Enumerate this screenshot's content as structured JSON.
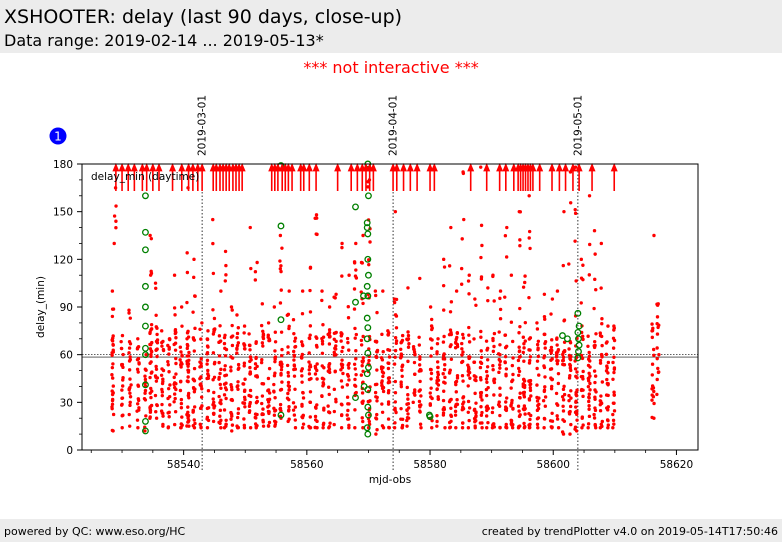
{
  "header": {
    "title": "XSHOOTER: delay (last 90 days, close-up)",
    "subtitle": "Data range: 2019-02-14 ... 2019-05-13*"
  },
  "notice": "*** not interactive ***",
  "badge": "1",
  "footer": {
    "left": "powered by QC: www.eso.org/HC",
    "right": "created by trendPlotter v4.0 on 2019-05-14T17:50:46"
  },
  "colors": {
    "series": "#ff0000",
    "highlight": "#008000",
    "badge": "#0000ff",
    "notice": "#ff0000"
  },
  "chart_data": {
    "type": "scatter",
    "xlabel": "mjd-obs",
    "ylabel": "delay_(min)",
    "legend": "delay_min (daytime)",
    "legend_position": "top-left",
    "xlim": [
      58523.5,
      58623.5
    ],
    "ylim": [
      0,
      180
    ],
    "xticks": [
      58540,
      58560,
      58580,
      58600,
      58620
    ],
    "yticks": [
      0,
      30,
      60,
      90,
      120,
      150,
      180
    ],
    "reference_lines": [
      58.5,
      60
    ],
    "date_markers": [
      {
        "x": 58543.0,
        "label": "2019-03-01"
      },
      {
        "x": 58574.0,
        "label": "2019-04-01"
      },
      {
        "x": 58604.0,
        "label": "2019-05-01"
      }
    ],
    "series": [
      {
        "color": "#ff0000",
        "marker": "dot",
        "columns": [
          {
            "x": 58528.5,
            "range": [
              12,
              100
            ],
            "n": 30
          },
          {
            "x": 58528.9,
            "range": [
              130,
              165
            ],
            "n": 6
          },
          {
            "x": 58530.0,
            "range": [
              14,
              72
            ],
            "n": 20
          },
          {
            "x": 58531.3,
            "range": [
              15,
              88
            ],
            "n": 22
          },
          {
            "x": 58532.6,
            "range": [
              14,
              70
            ],
            "n": 20
          },
          {
            "x": 58533.8,
            "range": [
              12,
              60
            ],
            "n": 15
          },
          {
            "x": 58534.7,
            "range": [
              20,
              135
            ],
            "n": 35
          },
          {
            "x": 58535.6,
            "range": [
              20,
              105
            ],
            "n": 24
          },
          {
            "x": 58536.6,
            "range": [
              15,
              75
            ],
            "n": 22
          },
          {
            "x": 58537.6,
            "range": [
              14,
              70
            ],
            "n": 20
          },
          {
            "x": 58538.6,
            "range": [
              16,
              110
            ],
            "n": 25
          },
          {
            "x": 58539.6,
            "range": [
              14,
              90
            ],
            "n": 22
          },
          {
            "x": 58540.7,
            "range": [
              15,
              165
            ],
            "n": 40
          },
          {
            "x": 58541.7,
            "range": [
              14,
              120
            ],
            "n": 26
          },
          {
            "x": 58542.8,
            "range": [
              14,
              80
            ],
            "n": 22
          },
          {
            "x": 58543.9,
            "range": [
              14,
              75
            ],
            "n": 22
          },
          {
            "x": 58544.9,
            "range": [
              18,
              145
            ],
            "n": 26
          },
          {
            "x": 58545.9,
            "range": [
              14,
              100
            ],
            "n": 24
          },
          {
            "x": 58546.8,
            "range": [
              14,
              125
            ],
            "n": 26
          },
          {
            "x": 58547.8,
            "range": [
              12,
              90
            ],
            "n": 22
          },
          {
            "x": 58548.8,
            "range": [
              14,
              85
            ],
            "n": 22
          },
          {
            "x": 58549.8,
            "range": [
              14,
              78
            ],
            "n": 22
          },
          {
            "x": 58550.8,
            "range": [
              14,
              140
            ],
            "n": 24
          },
          {
            "x": 58551.8,
            "range": [
              14,
              118
            ],
            "n": 24
          },
          {
            "x": 58552.8,
            "range": [
              15,
              92
            ],
            "n": 22
          },
          {
            "x": 58553.8,
            "range": [
              15,
              80
            ],
            "n": 22
          },
          {
            "x": 58554.8,
            "range": [
              15,
              90
            ],
            "n": 22
          },
          {
            "x": 58555.8,
            "range": [
              20,
              135
            ],
            "n": 28
          },
          {
            "x": 58557.0,
            "range": [
              18,
              100
            ],
            "n": 24
          },
          {
            "x": 58558.0,
            "range": [
              14,
              82
            ],
            "n": 22
          },
          {
            "x": 58559.3,
            "range": [
              14,
              100
            ],
            "n": 24
          },
          {
            "x": 58560.5,
            "range": [
              14,
              115
            ],
            "n": 24
          },
          {
            "x": 58561.5,
            "range": [
              14,
              148
            ],
            "n": 24
          },
          {
            "x": 58562.6,
            "range": [
              14,
              100
            ],
            "n": 22
          },
          {
            "x": 58563.6,
            "range": [
              14,
              90
            ],
            "n": 22
          },
          {
            "x": 58564.6,
            "range": [
              16,
              98
            ],
            "n": 22
          },
          {
            "x": 58565.7,
            "range": [
              14,
              130
            ],
            "n": 24
          },
          {
            "x": 58566.7,
            "range": [
              14,
              110
            ],
            "n": 22
          },
          {
            "x": 58567.9,
            "range": [
              14,
              130
            ],
            "n": 24
          },
          {
            "x": 58569.0,
            "range": [
              14,
              135
            ],
            "n": 26
          },
          {
            "x": 58570.1,
            "range": [
              14,
              170
            ],
            "n": 30
          },
          {
            "x": 58571.3,
            "range": [
              10,
              100
            ],
            "n": 24
          },
          {
            "x": 58572.3,
            "range": [
              14,
              100
            ],
            "n": 22
          },
          {
            "x": 58573.3,
            "range": [
              14,
              75
            ],
            "n": 22
          },
          {
            "x": 58574.4,
            "range": [
              14,
              150
            ],
            "n": 22
          },
          {
            "x": 58575.4,
            "range": [
              14,
              72
            ],
            "n": 22
          },
          {
            "x": 58576.4,
            "range": [
              15,
              102
            ],
            "n": 22
          },
          {
            "x": 58577.4,
            "range": [
              30,
              65
            ],
            "n": 14
          },
          {
            "x": 58578.4,
            "range": [
              14,
              108
            ],
            "n": 22
          },
          {
            "x": 58580.2,
            "range": [
              14,
              90
            ],
            "n": 22
          },
          {
            "x": 58581.2,
            "range": [
              15,
              70
            ],
            "n": 22
          },
          {
            "x": 58582.3,
            "range": [
              14,
              120
            ],
            "n": 24
          },
          {
            "x": 58583.3,
            "range": [
              14,
              140
            ],
            "n": 24
          },
          {
            "x": 58584.3,
            "range": [
              14,
              100
            ],
            "n": 24
          },
          {
            "x": 58585.3,
            "range": [
              14,
              175
            ],
            "n": 26
          },
          {
            "x": 58586.3,
            "range": [
              14,
              110
            ],
            "n": 24
          },
          {
            "x": 58587.3,
            "range": [
              14,
              95
            ],
            "n": 22
          },
          {
            "x": 58588.3,
            "range": [
              14,
              178
            ],
            "n": 26
          },
          {
            "x": 58589.3,
            "range": [
              14,
              102
            ],
            "n": 22
          },
          {
            "x": 58590.3,
            "range": [
              14,
              110
            ],
            "n": 22
          },
          {
            "x": 58591.3,
            "range": [
              14,
              100
            ],
            "n": 22
          },
          {
            "x": 58592.3,
            "range": [
              14,
              140
            ],
            "n": 24
          },
          {
            "x": 58593.3,
            "range": [
              14,
              110
            ],
            "n": 22
          },
          {
            "x": 58594.5,
            "range": [
              14,
              150
            ],
            "n": 26
          },
          {
            "x": 58595.3,
            "range": [
              14,
              178
            ],
            "n": 34
          },
          {
            "x": 58596.2,
            "range": [
              14,
              160
            ],
            "n": 30
          },
          {
            "x": 58597.5,
            "range": [
              14,
              80
            ],
            "n": 22
          },
          {
            "x": 58598.6,
            "range": [
              14,
              98
            ],
            "n": 22
          },
          {
            "x": 58599.7,
            "range": [
              14,
              95
            ],
            "n": 22
          },
          {
            "x": 58600.7,
            "range": [
              14,
              100
            ],
            "n": 22
          },
          {
            "x": 58601.7,
            "range": [
              10,
              150
            ],
            "n": 26
          },
          {
            "x": 58602.7,
            "range": [
              10,
              175
            ],
            "n": 26
          },
          {
            "x": 58603.7,
            "range": [
              12,
              178
            ],
            "n": 30
          },
          {
            "x": 58604.7,
            "range": [
              14,
              120
            ],
            "n": 24
          },
          {
            "x": 58605.8,
            "range": [
              14,
              160
            ],
            "n": 28
          },
          {
            "x": 58606.8,
            "range": [
              14,
              138
            ],
            "n": 24
          },
          {
            "x": 58607.8,
            "range": [
              14,
              130
            ],
            "n": 24
          },
          {
            "x": 58608.8,
            "range": [
              14,
              78
            ],
            "n": 22
          },
          {
            "x": 58609.8,
            "range": [
              14,
              78
            ],
            "n": 22
          },
          {
            "x": 58616.2,
            "range": [
              20,
              135
            ],
            "n": 20
          },
          {
            "x": 58617.0,
            "range": [
              35,
              92
            ],
            "n": 16
          }
        ]
      },
      {
        "color": "#008000",
        "marker": "ring",
        "points": [
          [
            58533.8,
            160
          ],
          [
            58533.8,
            137
          ],
          [
            58533.8,
            126
          ],
          [
            58533.8,
            103
          ],
          [
            58533.8,
            90
          ],
          [
            58533.8,
            78
          ],
          [
            58533.8,
            64
          ],
          [
            58533.8,
            60
          ],
          [
            58533.8,
            41
          ],
          [
            58533.8,
            18
          ],
          [
            58533.8,
            12
          ],
          [
            58555.8,
            179
          ],
          [
            58555.8,
            141
          ],
          [
            58555.8,
            82
          ],
          [
            58555.8,
            22
          ],
          [
            58567.9,
            153
          ],
          [
            58567.9,
            93
          ],
          [
            58567.9,
            33
          ],
          [
            58569.2,
            97
          ],
          [
            58569.3,
            40
          ],
          [
            58569.9,
            181
          ],
          [
            58570.0,
            160
          ],
          [
            58569.8,
            143
          ],
          [
            58569.8,
            140
          ],
          [
            58569.9,
            136
          ],
          [
            58569.9,
            120
          ],
          [
            58570.0,
            110
          ],
          [
            58569.8,
            103
          ],
          [
            58569.9,
            97
          ],
          [
            58569.8,
            83
          ],
          [
            58569.9,
            77
          ],
          [
            58569.8,
            70
          ],
          [
            58569.9,
            61
          ],
          [
            58570.0,
            52
          ],
          [
            58569.8,
            48
          ],
          [
            58569.9,
            38
          ],
          [
            58569.9,
            27
          ],
          [
            58570.0,
            22
          ],
          [
            58569.8,
            14
          ],
          [
            58569.9,
            10
          ],
          [
            58579.9,
            22
          ],
          [
            58580.0,
            21
          ],
          [
            58601.5,
            72
          ],
          [
            58602.3,
            70
          ],
          [
            58604.0,
            86
          ],
          [
            58604.2,
            78
          ],
          [
            58604.0,
            74
          ],
          [
            58604.1,
            70
          ],
          [
            58604.2,
            66
          ],
          [
            58604.1,
            62
          ],
          [
            58604.0,
            58
          ]
        ]
      }
    ],
    "upper_limit_markers": [
      58529.0,
      58530.0,
      58531.0,
      58532.0,
      58533.3,
      58534.0,
      58535.0,
      58536.0,
      58538.2,
      58539.7,
      58540.8,
      58541.5,
      58542.3,
      58543.0,
      58544.8,
      58545.3,
      58545.9,
      58546.4,
      58546.9,
      58547.4,
      58548.0,
      58548.5,
      58549.0,
      58549.5,
      58554.3,
      58554.8,
      58555.3,
      58556.0,
      58556.5,
      58557.0,
      58557.6,
      58559.0,
      58559.5,
      58560.4,
      58561.5,
      58565.0,
      58567.2,
      58568.2,
      58569.0,
      58569.6,
      58570.2,
      58570.8,
      58574.0,
      58574.6,
      58575.7,
      58576.8,
      58577.9,
      58580.0,
      58580.7,
      58586.6,
      58589.2,
      58591.3,
      58592.3,
      58593.6,
      58594.3,
      58594.7,
      58595.1,
      58595.5,
      58595.9,
      58596.3,
      58596.7,
      58597.8,
      58599.8,
      58601.0,
      58602.0,
      58603.2,
      58604.2,
      58606.3,
      58609.9
    ]
  }
}
